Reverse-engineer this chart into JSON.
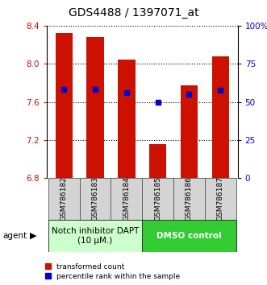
{
  "title": "GDS4488 / 1397071_at",
  "samples": [
    "GSM786182",
    "GSM786183",
    "GSM786184",
    "GSM786185",
    "GSM786186",
    "GSM786187"
  ],
  "bar_tops": [
    8.32,
    8.28,
    8.04,
    7.16,
    7.77,
    8.08
  ],
  "bar_bottom": 6.8,
  "blue_values": [
    7.73,
    7.73,
    7.7,
    7.6,
    7.68,
    7.72
  ],
  "ylim": [
    6.8,
    8.4
  ],
  "yticks_left": [
    6.8,
    7.2,
    7.6,
    8.0,
    8.4
  ],
  "yticks_right_vals": [
    6.8,
    7.2,
    7.6,
    8.0,
    8.4
  ],
  "yticks_right_labels": [
    "0",
    "25",
    "50",
    "75",
    "100%"
  ],
  "bar_color": "#cc1100",
  "blue_color": "#0000cc",
  "group1_label": "Notch inhibitor DAPT\n(10 μM.)",
  "group2_label": "DMSO control",
  "group1_color": "#ccffcc",
  "group2_color": "#33cc33",
  "group1_indices": [
    0,
    1,
    2
  ],
  "group2_indices": [
    3,
    4,
    5
  ],
  "legend_red": "transformed count",
  "legend_blue": "percentile rank within the sample",
  "agent_label": "agent",
  "left_color": "#cc1100",
  "right_color": "#0000cc",
  "title_fontsize": 10,
  "tick_fontsize": 7.5,
  "sample_fontsize": 6.5,
  "group_fontsize": 7.5,
  "legend_fontsize": 6.5
}
